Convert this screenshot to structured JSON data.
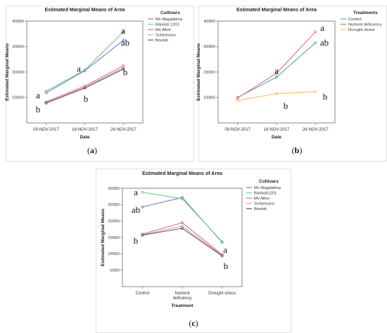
{
  "chart_data": [
    {
      "type": "line",
      "title": "Estimated Marginal Means of Area",
      "xlabel": "Date",
      "ylabel": "Estimated Marginal Means",
      "categories": [
        "09-NOV-2017",
        "18-NOV-2017",
        "26-NOV-2017"
      ],
      "ylim": [
        0,
        400000
      ],
      "yticks": [
        "100000",
        "200000",
        "300000",
        "400000"
      ],
      "legend_title": "Cultivars",
      "legend_position": "right",
      "series": [
        {
          "name": "Mv Magdaléna",
          "color": "#7b74c9",
          "values": [
            118000,
            205000,
            325000
          ]
        },
        {
          "name": "Bánkúti 1201",
          "color": "#5fd18f",
          "values": [
            125000,
            208000,
            358000
          ]
        },
        {
          "name": "Mv Alkor",
          "color": "#e8737a",
          "values": [
            83000,
            145000,
            225000
          ]
        },
        {
          "name": "Schiemann",
          "color": "#c9a8c9",
          "values": [
            80000,
            140000,
            218000
          ]
        },
        {
          "name": "Bözödi",
          "color": "#6b4a5a",
          "values": [
            78000,
            137000,
            212000
          ]
        }
      ],
      "annotations": [
        "a",
        "b",
        "a",
        "b",
        "a",
        "ab",
        "b"
      ],
      "caption_letter": "a"
    },
    {
      "type": "line",
      "title": "Estimated Marginal Means of Area",
      "xlabel": "Date",
      "ylabel": "Estimated Marginal Means",
      "categories": [
        "09-NOV-2017",
        "18-NOV-2017",
        "26-NOV-2017"
      ],
      "ylim": [
        0,
        400000
      ],
      "yticks": [
        "100000",
        "200000",
        "300000",
        "400000"
      ],
      "legend_title": "Treatments",
      "legend_position": "right",
      "series": [
        {
          "name": "Control",
          "color": "#5fa8a0",
          "values": [
            100000,
            180000,
            315000
          ]
        },
        {
          "name": "Nutrient deficiency",
          "color": "#e8737a",
          "values": [
            98000,
            195000,
            358000
          ]
        },
        {
          "name": "Drought stress",
          "color": "#f5c06a",
          "values": [
            88000,
            115000,
            123000
          ]
        }
      ],
      "annotations": [
        "a",
        "b",
        "a",
        "ab",
        "b"
      ],
      "caption_letter": "b"
    },
    {
      "type": "line",
      "title": "Estimated Marginal Means of Area",
      "xlabel": "Treatment",
      "ylabel": "Estimated Marginal Means",
      "categories": [
        "Control",
        "Nutrient deficiency",
        "Drought stress"
      ],
      "ylim": [
        0,
        300000
      ],
      "yticks": [
        "50000",
        "100000",
        "150000",
        "200000",
        "250000",
        "300000"
      ],
      "legend_title": "Cultivars",
      "legend_position": "right",
      "series": [
        {
          "name": "Mv Magdaléna",
          "color": "#7b74c9",
          "values": [
            243000,
            272000,
            135000
          ]
        },
        {
          "name": "Bánkúti1201",
          "color": "#5fd18f",
          "values": [
            288000,
            268000,
            137000
          ]
        },
        {
          "name": "Mv Alkor",
          "color": "#e8737a",
          "values": [
            160000,
            195000,
            98000
          ]
        },
        {
          "name": "Schiemann",
          "color": "#c9a8c9",
          "values": [
            158000,
            185000,
            96000
          ]
        },
        {
          "name": "Bözödi",
          "color": "#6b4a5a",
          "values": [
            157000,
            178000,
            94000
          ]
        }
      ],
      "annotations": [
        "a",
        "ab",
        "b",
        "a",
        "b"
      ],
      "caption_letter": "c"
    }
  ]
}
